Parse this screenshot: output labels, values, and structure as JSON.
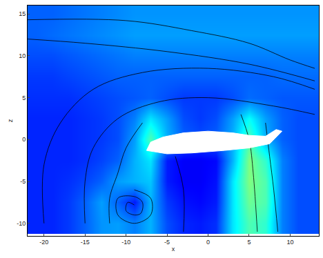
{
  "chart_data": {
    "type": "heatmap",
    "x_label": "x",
    "y_label": "z",
    "xlim": [
      -22,
      13.5
    ],
    "ylim": [
      -11.5,
      16
    ],
    "xticks": [
      -20,
      -15,
      -10,
      -5,
      0,
      5,
      10
    ],
    "yticks": [
      -10,
      -5,
      0,
      5,
      10,
      15
    ],
    "grid": false,
    "x": [
      -21,
      -19,
      -17,
      -15,
      -13,
      -11,
      -9,
      -7,
      -5,
      -3,
      -1,
      1,
      3,
      5,
      7,
      9,
      11,
      13
    ],
    "y": [
      -10,
      -7.5,
      -5,
      -2.5,
      0,
      2.5,
      5,
      7.5,
      10,
      12.5,
      15
    ],
    "zlim": [
      0,
      1
    ],
    "cells": [
      [
        0.16,
        0.16,
        0.18,
        0.22,
        0.27,
        0.28,
        0.25,
        0.3,
        0.2,
        0.16,
        0.15,
        0.17,
        0.35,
        0.45,
        0.42,
        0.25,
        0.2,
        0.2
      ],
      [
        0.16,
        0.16,
        0.18,
        0.22,
        0.28,
        0.22,
        0.15,
        0.3,
        0.18,
        0.14,
        0.13,
        0.15,
        0.35,
        0.48,
        0.45,
        0.25,
        0.2,
        0.2
      ],
      [
        0.16,
        0.16,
        0.17,
        0.19,
        0.22,
        0.28,
        0.3,
        0.32,
        0.15,
        0.12,
        0.12,
        0.14,
        0.35,
        0.5,
        0.45,
        0.25,
        0.2,
        0.2
      ],
      [
        0.16,
        0.16,
        0.16,
        0.17,
        0.19,
        0.22,
        0.3,
        0.35,
        0.15,
        0.12,
        0.12,
        0.13,
        0.3,
        0.5,
        0.42,
        0.25,
        0.2,
        0.2
      ],
      [
        0.16,
        0.16,
        0.16,
        0.17,
        0.18,
        0.2,
        0.28,
        0.45,
        0.3,
        0.22,
        0.2,
        0.22,
        0.3,
        0.45,
        0.3,
        0.22,
        0.2,
        0.2
      ],
      [
        0.16,
        0.16,
        0.16,
        0.17,
        0.18,
        0.2,
        0.25,
        0.35,
        0.28,
        0.2,
        0.18,
        0.2,
        0.28,
        0.38,
        0.28,
        0.22,
        0.2,
        0.2
      ],
      [
        0.17,
        0.17,
        0.17,
        0.18,
        0.19,
        0.2,
        0.21,
        0.22,
        0.2,
        0.18,
        0.18,
        0.18,
        0.2,
        0.23,
        0.22,
        0.21,
        0.21,
        0.21
      ],
      [
        0.18,
        0.18,
        0.19,
        0.2,
        0.21,
        0.22,
        0.22,
        0.22,
        0.22,
        0.22,
        0.22,
        0.22,
        0.22,
        0.22,
        0.22,
        0.23,
        0.23,
        0.23
      ],
      [
        0.2,
        0.2,
        0.21,
        0.22,
        0.23,
        0.24,
        0.25,
        0.25,
        0.25,
        0.25,
        0.25,
        0.25,
        0.25,
        0.25,
        0.25,
        0.25,
        0.25,
        0.25
      ],
      [
        0.22,
        0.23,
        0.24,
        0.25,
        0.26,
        0.27,
        0.28,
        0.28,
        0.28,
        0.28,
        0.28,
        0.28,
        0.28,
        0.28,
        0.28,
        0.28,
        0.28,
        0.28
      ],
      [
        0.22,
        0.22,
        0.23,
        0.24,
        0.25,
        0.26,
        0.27,
        0.27,
        0.27,
        0.27,
        0.27,
        0.27,
        0.27,
        0.27,
        0.27,
        0.27,
        0.27,
        0.27
      ]
    ],
    "body": {
      "color": "#ffffff",
      "x": [
        -7.5,
        -7,
        -5.5,
        -3,
        0,
        3,
        5,
        7,
        8.3,
        9,
        7.5,
        5,
        2,
        -2,
        -5,
        -7.5
      ],
      "y": [
        -1.3,
        -0.3,
        0.3,
        0.8,
        1.0,
        0.8,
        0.5,
        0.4,
        1.2,
        1.0,
        -0.5,
        -1.0,
        -1.3,
        -1.6,
        -1.7,
        -1.3
      ]
    },
    "streamlines": [
      {
        "color": "#000000",
        "x": [
          -22,
          -10,
          -2,
          5,
          10,
          13
        ],
        "y": [
          14.3,
          14.2,
          13,
          11.5,
          9.5,
          8.5
        ]
      },
      {
        "color": "#000000",
        "x": [
          -22,
          -15,
          -5,
          5,
          13
        ],
        "y": [
          12,
          11.5,
          10.5,
          9,
          7
        ]
      },
      {
        "color": "#000000",
        "x": [
          13,
          8,
          0,
          -8,
          -14,
          -18,
          -20,
          -20
        ],
        "y": [
          6,
          7.5,
          8.5,
          8,
          6,
          2,
          -3,
          -10
        ]
      },
      {
        "color": "#000000",
        "x": [
          13,
          8,
          0,
          -6,
          -11,
          -14,
          -15,
          -15
        ],
        "y": [
          3,
          4,
          5,
          4.5,
          2.5,
          -1,
          -5,
          -10
        ]
      },
      {
        "color": "#000000",
        "x": [
          -8,
          -10,
          -11,
          -12,
          -12
        ],
        "y": [
          2,
          -1,
          -4,
          -7,
          -10
        ]
      },
      {
        "color": "#000000",
        "x": [
          -9,
          -7,
          -7,
          -9,
          -11,
          -11,
          -9,
          -8,
          -8.2,
          -9,
          -10,
          -9.8,
          -9
        ],
        "y": [
          -6,
          -7,
          -9,
          -10,
          -9,
          -7,
          -6.8,
          -7.5,
          -8.8,
          -9,
          -8.5,
          -7.5,
          -7.8
        ]
      },
      {
        "color": "#000000",
        "x": [
          4,
          5,
          5.5,
          6
        ],
        "y": [
          3,
          0,
          -4,
          -11
        ]
      },
      {
        "color": "#000000",
        "x": [
          7,
          7.5,
          8,
          8.5
        ],
        "y": [
          2,
          -2,
          -6,
          -11
        ]
      },
      {
        "color": "#000000",
        "x": [
          -4,
          -3,
          -3
        ],
        "y": [
          -2,
          -6,
          -11
        ]
      }
    ]
  }
}
